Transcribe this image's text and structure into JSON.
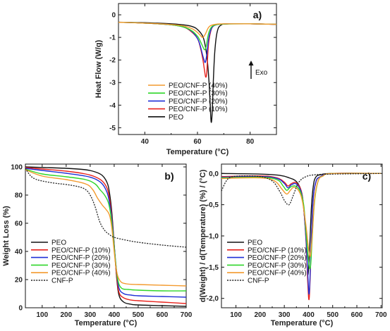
{
  "colors": {
    "PEO": "#111111",
    "PEO/CNF-P (10%)": "#e8221c",
    "PEO/CNF-P (20%)": "#1f2fd6",
    "PEO/CNF-P (30%)": "#2fd62a",
    "PEO/CNF-P (40%)": "#f39a2e",
    "CNF-P": "#222222"
  },
  "chart_data": [
    {
      "type": "line",
      "panel_label": "a)",
      "xlabel": "Temperature (°C)",
      "ylabel": "Heat Flow (W/g)",
      "xlim": [
        30,
        90
      ],
      "ylim": [
        -5.3,
        0.5
      ],
      "xticks": [
        40,
        60,
        80
      ],
      "xtick_labels": [
        "40",
        "60",
        "80"
      ],
      "yticks": [
        0,
        -1,
        -2,
        -3,
        -4,
        -5
      ],
      "ytick_labels": [
        "0",
        "-1",
        "-2",
        "-3",
        "-4",
        "-5"
      ],
      "annotation": "Exo",
      "legend_order": [
        "PEO/CNF-P (40%)",
        "PEO/CNF-P (30%)",
        "PEO/CNF-P (20%)",
        "PEO/CNF-P (10%)",
        "PEO"
      ],
      "series": [
        {
          "name": "PEO",
          "x": [
            30,
            40,
            50,
            55,
            58,
            60,
            62,
            63,
            63.8,
            64.4,
            64.8,
            65.2,
            65.6,
            66,
            66.6,
            67.5,
            69,
            72,
            80,
            90
          ],
          "y": [
            -0.33,
            -0.35,
            -0.4,
            -0.45,
            -0.52,
            -0.65,
            -0.95,
            -1.4,
            -2.1,
            -3.0,
            -3.9,
            -4.75,
            -4.3,
            -3.0,
            -1.6,
            -0.75,
            -0.45,
            -0.4,
            -0.4,
            -0.42
          ]
        },
        {
          "name": "PEO/CNF-P (10%)",
          "x": [
            30,
            40,
            50,
            55,
            58,
            60,
            61,
            62,
            62.6,
            63.1,
            63.5,
            63.8,
            64.2,
            65,
            66,
            68,
            72,
            80,
            90
          ],
          "y": [
            -0.33,
            -0.37,
            -0.44,
            -0.55,
            -0.78,
            -1.05,
            -1.4,
            -1.95,
            -2.4,
            -2.75,
            -2.6,
            -2.0,
            -1.3,
            -0.75,
            -0.5,
            -0.42,
            -0.4,
            -0.4,
            -0.42
          ]
        },
        {
          "name": "PEO/CNF-P (20%)",
          "x": [
            30,
            40,
            50,
            55,
            58,
            60,
            61,
            62,
            62.5,
            63,
            63.6,
            64.2,
            65,
            66,
            68,
            72,
            80,
            90
          ],
          "y": [
            -0.33,
            -0.37,
            -0.44,
            -0.55,
            -0.75,
            -1.05,
            -1.35,
            -1.8,
            -2.0,
            -2.1,
            -1.7,
            -1.1,
            -0.7,
            -0.5,
            -0.42,
            -0.4,
            -0.4,
            -0.42
          ]
        },
        {
          "name": "PEO/CNF-P (30%)",
          "x": [
            30,
            40,
            50,
            55,
            58,
            60,
            61,
            62,
            62.7,
            63.3,
            63.9,
            64.5,
            65.5,
            67,
            70,
            80,
            90
          ],
          "y": [
            -0.33,
            -0.37,
            -0.44,
            -0.55,
            -0.72,
            -0.95,
            -1.15,
            -1.4,
            -1.55,
            -1.4,
            -1.0,
            -0.72,
            -0.52,
            -0.44,
            -0.41,
            -0.4,
            -0.42
          ]
        },
        {
          "name": "PEO/CNF-P (40%)",
          "x": [
            30,
            40,
            50,
            55,
            58,
            60,
            61,
            62,
            63,
            64,
            65,
            67,
            70,
            80,
            90
          ],
          "y": [
            -0.33,
            -0.37,
            -0.43,
            -0.5,
            -0.62,
            -0.78,
            -0.9,
            -1.0,
            -0.85,
            -0.6,
            -0.48,
            -0.42,
            -0.4,
            -0.4,
            -0.42
          ]
        }
      ]
    },
    {
      "type": "line",
      "panel_label": "b)",
      "xlabel": "Temperature (°C)",
      "ylabel": "Weight Loss (%)",
      "xlim": [
        30,
        700
      ],
      "ylim": [
        0,
        102
      ],
      "xticks": [
        100,
        200,
        300,
        400,
        500,
        600,
        700
      ],
      "xtick_labels": [
        "100",
        "200",
        "300",
        "400",
        "500",
        "600",
        "700"
      ],
      "yticks": [
        0,
        20,
        40,
        60,
        80,
        100
      ],
      "ytick_labels": [
        "0",
        "20",
        "40",
        "60",
        "80",
        "100"
      ],
      "legend_order": [
        "PEO",
        "PEO/CNF-P (10%)",
        "PEO/CNF-P (20%)",
        "PEO/CNF-P (30%)",
        "PEO/CNF-P (40%)",
        "CNF-P"
      ],
      "series": [
        {
          "name": "PEO",
          "x": [
            30,
            100,
            200,
            280,
            320,
            350,
            370,
            380,
            390,
            400,
            410,
            420,
            440,
            470,
            500,
            600,
            700
          ],
          "y": [
            100,
            99.6,
            99,
            98,
            96.5,
            94,
            89,
            82,
            68,
            45,
            22,
            9,
            4,
            2.5,
            2,
            1.5,
            1
          ]
        },
        {
          "name": "PEO/CNF-P (10%)",
          "x": [
            30,
            100,
            200,
            280,
            320,
            350,
            370,
            380,
            390,
            400,
            410,
            420,
            440,
            470,
            500,
            600,
            700
          ],
          "y": [
            99.5,
            98.5,
            97,
            95,
            93,
            90,
            85,
            78,
            65,
            44,
            23,
            11,
            7,
            5.5,
            5,
            4,
            3
          ]
        },
        {
          "name": "PEO/CNF-P (20%)",
          "x": [
            30,
            100,
            200,
            280,
            320,
            350,
            370,
            380,
            390,
            400,
            410,
            420,
            440,
            470,
            500,
            600,
            700
          ],
          "y": [
            99,
            97.5,
            95.5,
            93.5,
            91.5,
            88,
            82,
            75,
            63,
            44,
            26,
            14,
            10,
            9,
            8.5,
            8,
            7.5
          ]
        },
        {
          "name": "PEO/CNF-P (30%)",
          "x": [
            30,
            100,
            200,
            280,
            320,
            340,
            360,
            375,
            385,
            395,
            405,
            415,
            430,
            460,
            500,
            600,
            700
          ],
          "y": [
            98.5,
            95,
            93,
            91,
            88,
            84,
            80,
            75,
            67,
            52,
            34,
            20,
            14,
            13,
            12.5,
            12,
            12
          ]
        },
        {
          "name": "PEO/CNF-P (40%)",
          "x": [
            30,
            100,
            200,
            280,
            310,
            330,
            350,
            365,
            380,
            390,
            400,
            410,
            425,
            450,
            500,
            600,
            700
          ],
          "y": [
            98,
            93.5,
            91,
            88,
            84,
            78,
            73,
            70,
            66,
            57,
            40,
            26,
            19,
            17,
            16.5,
            16,
            15.5
          ]
        },
        {
          "name": "CNF-P",
          "x": [
            30,
            50,
            70,
            100,
            150,
            200,
            250,
            280,
            300,
            320,
            340,
            360,
            380,
            400,
            450,
            500,
            600,
            700
          ],
          "y": [
            99,
            94,
            91.5,
            90,
            88.5,
            87.5,
            86,
            84,
            80,
            72,
            61,
            55,
            52,
            50,
            48,
            46.5,
            44.5,
            43
          ]
        }
      ]
    },
    {
      "type": "line",
      "panel_label": "c)",
      "xlabel": "Temperature (°C)",
      "ylabel": "d(Weight) / d(Temperature) (%) / (°C)",
      "xlim": [
        40,
        705
      ],
      "ylim": [
        -2.15,
        0.15
      ],
      "xticks": [
        100,
        200,
        300,
        400,
        500,
        600,
        700
      ],
      "xtick_labels": [
        "100",
        "200",
        "300",
        "400",
        "500",
        "600",
        "700"
      ],
      "yticks": [
        0,
        -0.5,
        -1.0,
        -1.5,
        -2.0
      ],
      "ytick_labels": [
        "0,0",
        "-0,5",
        "-1,0",
        "-1,5",
        "-2,0"
      ],
      "legend_order": [
        "PEO",
        "PEO/CNF-P (10%)",
        "PEO/CNF-P (20%)",
        "PEO/CNF-P (30%)",
        "PEO/CNF-P (40%)",
        "CNF-P"
      ],
      "series": [
        {
          "name": "PEO",
          "x": [
            40,
            200,
            280,
            320,
            350,
            370,
            380,
            390,
            397,
            404,
            412,
            420,
            430,
            450,
            500,
            700
          ],
          "y": [
            0,
            -0.01,
            -0.03,
            -0.07,
            -0.13,
            -0.28,
            -0.55,
            -1.05,
            -1.62,
            -1.25,
            -0.55,
            -0.2,
            -0.06,
            -0.02,
            0,
            0
          ]
        },
        {
          "name": "PEO/CNF-P (10%)",
          "x": [
            40,
            200,
            270,
            300,
            315,
            330,
            350,
            370,
            380,
            390,
            397,
            403,
            410,
            418,
            430,
            450,
            500,
            700
          ],
          "y": [
            -0.05,
            -0.04,
            -0.07,
            -0.14,
            -0.2,
            -0.16,
            -0.15,
            -0.28,
            -0.55,
            -1.1,
            -1.75,
            -2.0,
            -1.3,
            -0.5,
            -0.15,
            -0.05,
            0,
            0
          ]
        },
        {
          "name": "PEO/CNF-P (20%)",
          "x": [
            40,
            200,
            270,
            300,
            315,
            330,
            350,
            370,
            380,
            390,
            397,
            403,
            410,
            418,
            430,
            450,
            500,
            700
          ],
          "y": [
            -0.06,
            -0.05,
            -0.08,
            -0.16,
            -0.23,
            -0.18,
            -0.17,
            -0.3,
            -0.55,
            -1.05,
            -1.6,
            -1.92,
            -1.25,
            -0.48,
            -0.14,
            -0.05,
            0,
            0
          ]
        },
        {
          "name": "PEO/CNF-P (30%)",
          "x": [
            40,
            200,
            270,
            295,
            310,
            325,
            345,
            365,
            380,
            390,
            400,
            408,
            415,
            425,
            440,
            460,
            500,
            700
          ],
          "y": [
            -0.07,
            -0.06,
            -0.1,
            -0.2,
            -0.27,
            -0.22,
            -0.2,
            -0.28,
            -0.5,
            -0.95,
            -1.4,
            -1.5,
            -1.05,
            -0.45,
            -0.12,
            -0.04,
            0,
            0
          ]
        },
        {
          "name": "PEO/CNF-P (40%)",
          "x": [
            40,
            200,
            260,
            290,
            310,
            325,
            340,
            360,
            375,
            390,
            400,
            408,
            416,
            425,
            440,
            460,
            500,
            700
          ],
          "y": [
            -0.08,
            -0.07,
            -0.12,
            -0.25,
            -0.33,
            -0.27,
            -0.22,
            -0.28,
            -0.45,
            -0.85,
            -1.2,
            -1.32,
            -0.95,
            -0.42,
            -0.12,
            -0.04,
            0,
            0
          ]
        },
        {
          "name": "CNF-P",
          "x": [
            40,
            60,
            80,
            120,
            200,
            250,
            280,
            300,
            315,
            325,
            340,
            360,
            390,
            430,
            500,
            700
          ],
          "y": [
            -0.28,
            -0.12,
            -0.06,
            -0.04,
            -0.05,
            -0.12,
            -0.28,
            -0.43,
            -0.5,
            -0.47,
            -0.32,
            -0.14,
            -0.05,
            -0.02,
            -0.01,
            0
          ]
        }
      ]
    }
  ]
}
